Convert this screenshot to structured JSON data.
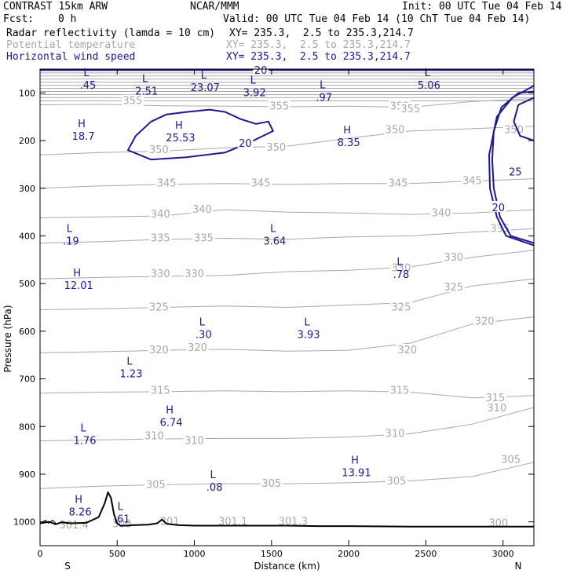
{
  "header": {
    "model": "CONTRAST 15km ARW",
    "org": "NCAR/MMM",
    "init": "Init: 00 UTC Tue 04 Feb 14",
    "fcst_label": "Fcst:",
    "fcst_value": "0 h",
    "valid": "Valid: 00 UTC Tue 04 Feb 14 (10 ChT Tue 04 Feb 14)"
  },
  "fields": [
    {
      "name": "Radar reflectivity (lamda = 10 cm)",
      "xy": "XY= 235.3,  2.5 to 235.3,214.7",
      "color": "#000000"
    },
    {
      "name": "Potential temperature",
      "xy": "XY= 235.3,  2.5 to 235.3,214.7",
      "color": "#a8a8a8"
    },
    {
      "name": "Horizontal wind speed",
      "xy": "XY= 235.3,  2.5 to 235.3,214.7",
      "color": "#1a1a8c"
    }
  ],
  "colors": {
    "theta": "#a8a8a8",
    "wind": "#1a1a8c",
    "terrain": "#000000",
    "axis": "#000000"
  },
  "chart_data": {
    "type": "line",
    "title": "CONTRAST 15km ARW",
    "xlabel": "Distance (km)",
    "ylabel": "Pressure (hPa)",
    "xlim": [
      0,
      3200
    ],
    "ylim": [
      1050,
      50
    ],
    "x_ticks": [
      0,
      500,
      1000,
      1500,
      2000,
      2500,
      3000
    ],
    "y_ticks": [
      100,
      200,
      300,
      400,
      500,
      600,
      700,
      800,
      900,
      1000
    ],
    "x_end_labels": {
      "left": "S",
      "right": "N"
    },
    "theta_contours": [
      {
        "label": "355",
        "label_positions": [
          [
            600,
            117
          ],
          [
            1550,
            128
          ],
          [
            2330,
            128
          ],
          [
            2400,
            134
          ]
        ],
        "x": [
          0,
          400,
          800,
          1200,
          1600,
          2000,
          2400,
          2800,
          3200
        ],
        "p": [
          125,
          124,
          127,
          128,
          129,
          128,
          130,
          118,
          112
        ]
      },
      {
        "label": "350",
        "label_positions": [
          [
            770,
            220
          ],
          [
            1530,
            215
          ],
          [
            2300,
            178
          ],
          [
            3070,
            178
          ]
        ],
        "x": [
          0,
          400,
          800,
          1200,
          1600,
          2000,
          2400,
          2800,
          3200
        ],
        "p": [
          230,
          225,
          222,
          215,
          212,
          195,
          180,
          175,
          170
        ]
      },
      {
        "label": "345",
        "label_positions": [
          [
            820,
            290
          ],
          [
            1430,
            290
          ],
          [
            2320,
            290
          ],
          [
            2800,
            285
          ]
        ],
        "x": [
          0,
          400,
          800,
          1200,
          1600,
          2000,
          2400,
          2800,
          3200
        ],
        "p": [
          300,
          295,
          292,
          290,
          292,
          290,
          290,
          285,
          280
        ]
      },
      {
        "label": "340",
        "label_positions": [
          [
            780,
            355
          ],
          [
            1050,
            345
          ],
          [
            2600,
            352
          ]
        ],
        "x": [
          0,
          400,
          800,
          1200,
          1600,
          2000,
          2400,
          2800,
          3200
        ],
        "p": [
          362,
          360,
          358,
          345,
          350,
          352,
          355,
          352,
          345
        ]
      },
      {
        "label": "335",
        "label_positions": [
          [
            780,
            405
          ],
          [
            1060,
            405
          ],
          [
            2980,
            385
          ]
        ],
        "x": [
          0,
          400,
          800,
          1200,
          1600,
          2000,
          2400,
          2800,
          3200
        ],
        "p": [
          415,
          412,
          407,
          405,
          407,
          402,
          400,
          392,
          385
        ]
      },
      {
        "label": "330",
        "label_positions": [
          [
            780,
            480
          ],
          [
            1000,
            480
          ],
          [
            2340,
            468
          ],
          [
            2680,
            445
          ]
        ],
        "x": [
          0,
          400,
          800,
          1200,
          1600,
          2000,
          2400,
          2800,
          3200
        ],
        "p": [
          490,
          487,
          485,
          483,
          475,
          472,
          465,
          445,
          430
        ]
      },
      {
        "label": "325",
        "label_positions": [
          [
            770,
            550
          ],
          [
            2340,
            550
          ],
          [
            2680,
            508
          ]
        ],
        "x": [
          0,
          400,
          800,
          1200,
          1600,
          2000,
          2400,
          2800,
          3200
        ],
        "p": [
          555,
          553,
          550,
          547,
          550,
          545,
          540,
          505,
          490
        ]
      },
      {
        "label": "320",
        "label_positions": [
          [
            770,
            640
          ],
          [
            1020,
            635
          ],
          [
            2380,
            640
          ],
          [
            2880,
            580
          ]
        ],
        "x": [
          0,
          400,
          800,
          1200,
          1600,
          2000,
          2400,
          2800,
          3200
        ],
        "p": [
          645,
          643,
          640,
          638,
          642,
          640,
          625,
          585,
          570
        ]
      },
      {
        "label": "315",
        "label_positions": [
          [
            780,
            725
          ],
          [
            2330,
            725
          ],
          [
            2950,
            740
          ]
        ],
        "x": [
          0,
          400,
          800,
          1200,
          1600,
          2000,
          2400,
          2800,
          3200
        ],
        "p": [
          730,
          728,
          727,
          725,
          727,
          725,
          728,
          740,
          735
        ]
      },
      {
        "label": "310",
        "label_positions": [
          [
            740,
            820
          ],
          [
            1000,
            830
          ],
          [
            2300,
            815
          ],
          [
            2960,
            762
          ]
        ],
        "x": [
          0,
          400,
          800,
          1200,
          1600,
          2000,
          2400,
          2800,
          3200
        ],
        "p": [
          830,
          828,
          826,
          825,
          825,
          822,
          815,
          795,
          760
        ]
      },
      {
        "label": "305",
        "label_positions": [
          [
            750,
            922
          ],
          [
            1500,
            920
          ],
          [
            2310,
            915
          ],
          [
            3050,
            870
          ]
        ],
        "x": [
          0,
          400,
          800,
          1200,
          1600,
          2000,
          2400,
          2800,
          3200
        ],
        "p": [
          930,
          925,
          922,
          920,
          920,
          918,
          914,
          905,
          875
        ]
      },
      {
        "label": "301.4",
        "label_positions": [
          [
            220,
            1007
          ]
        ],
        "x": [],
        "p": []
      },
      {
        "label": "300",
        "label_positions": [
          [
            530,
            1005
          ],
          [
            2970,
            1003
          ]
        ],
        "x": [],
        "p": []
      },
      {
        "label": "301",
        "label_positions": [
          [
            840,
            1000
          ]
        ],
        "x": [],
        "p": []
      },
      {
        "label": "301.1",
        "label_positions": [
          [
            1250,
            1000
          ]
        ],
        "x": [],
        "p": []
      },
      {
        "label": "301.3",
        "label_positions": [
          [
            1640,
            1000
          ]
        ],
        "x": [],
        "p": []
      }
    ],
    "wind_contours": [
      {
        "label": "20",
        "points": [
          [
            720,
            160
          ],
          [
            620,
            190
          ],
          [
            570,
            220
          ],
          [
            720,
            240
          ],
          [
            950,
            235
          ],
          [
            1200,
            225
          ],
          [
            1350,
            205
          ],
          [
            1510,
            180
          ],
          [
            1480,
            160
          ],
          [
            1400,
            165
          ],
          [
            1300,
            155
          ],
          [
            1200,
            140
          ],
          [
            1100,
            135
          ],
          [
            950,
            140
          ],
          [
            820,
            145
          ],
          [
            720,
            160
          ]
        ],
        "label_position": [
          1330,
          205
        ]
      },
      {
        "label": "20",
        "points": [
          [
            0,
            52
          ],
          [
            3200,
            52
          ]
        ],
        "label_position": [
          1430,
          52
        ]
      },
      {
        "label": "25",
        "points": [
          [
            3200,
            97
          ],
          [
            3100,
            100
          ],
          [
            2990,
            130
          ],
          [
            2940,
            180
          ],
          [
            2930,
            240
          ],
          [
            2940,
            300
          ],
          [
            2980,
            360
          ],
          [
            3050,
            400
          ],
          [
            3200,
            415
          ]
        ],
        "label_position": [
          3080,
          265
        ]
      },
      {
        "label": "20",
        "points": [
          [
            3200,
            85
          ],
          [
            3060,
            110
          ],
          [
            2960,
            150
          ],
          [
            2910,
            230
          ],
          [
            2915,
            300
          ],
          [
            2960,
            360
          ],
          [
            3020,
            400
          ],
          [
            3200,
            420
          ]
        ],
        "label_position": [
          2970,
          340
        ]
      },
      {
        "label": "",
        "points": [
          [
            3200,
            110
          ],
          [
            3100,
            125
          ],
          [
            3070,
            160
          ],
          [
            3110,
            190
          ],
          [
            3200,
            200
          ]
        ],
        "label_position": null
      }
    ],
    "wind_extrema": [
      {
        "type": "L",
        "value": ".45",
        "x": 300,
        "p": 75
      },
      {
        "type": "L",
        "value": "2.51",
        "x": 680,
        "p": 87
      },
      {
        "type": "L",
        "value": "23.07",
        "x": 1060,
        "p": 80
      },
      {
        "type": "L",
        "value": "3.92",
        "x": 1380,
        "p": 90
      },
      {
        "type": "L",
        "value": ".97",
        "x": 1830,
        "p": 100
      },
      {
        "type": "L",
        "value": "5.06",
        "x": 2510,
        "p": 75
      },
      {
        "type": "H",
        "value": "18.7",
        "x": 270,
        "p": 182
      },
      {
        "type": "H",
        "value": "25.53",
        "x": 900,
        "p": 185
      },
      {
        "type": "H",
        "value": "8.35",
        "x": 1990,
        "p": 195
      },
      {
        "type": "L",
        "value": ".19",
        "x": 190,
        "p": 402
      },
      {
        "type": "L",
        "value": "3.64",
        "x": 1510,
        "p": 402
      },
      {
        "type": "L",
        "value": ".78",
        "x": 2330,
        "p": 472
      },
      {
        "type": "H",
        "value": "12.01",
        "x": 240,
        "p": 495
      },
      {
        "type": "L",
        "value": ".30",
        "x": 1050,
        "p": 598
      },
      {
        "type": "L",
        "value": "3.93",
        "x": 1730,
        "p": 598
      },
      {
        "type": "L",
        "value": "1.23",
        "x": 580,
        "p": 680
      },
      {
        "type": "H",
        "value": "6.74",
        "x": 840,
        "p": 782
      },
      {
        "type": "L",
        "value": "1.76",
        "x": 280,
        "p": 820
      },
      {
        "type": "L",
        "value": ".08",
        "x": 1120,
        "p": 918
      },
      {
        "type": "H",
        "value": "13.91",
        "x": 2040,
        "p": 888
      },
      {
        "type": "H",
        "value": "8.26",
        "x": 250,
        "p": 970
      },
      {
        "type": "L",
        "value": ".61",
        "x": 520,
        "p": 985
      }
    ],
    "terrain": {
      "x": [
        0,
        60,
        100,
        140,
        200,
        300,
        380,
        420,
        440,
        460,
        480,
        500,
        520,
        560,
        600,
        700,
        760,
        790,
        820,
        900,
        1000,
        1200,
        1400,
        1600,
        1800,
        2000,
        2400,
        2800,
        3200
      ],
      "p": [
        1003,
        1000,
        1005,
        1001,
        1003,
        1002,
        990,
        960,
        938,
        950,
        985,
        1003,
        1008,
        1008,
        1007,
        1006,
        1003,
        995,
        1004,
        1007,
        1008,
        1008,
        1008,
        1008,
        1009,
        1009,
        1010,
        1010,
        1010
      ]
    }
  }
}
